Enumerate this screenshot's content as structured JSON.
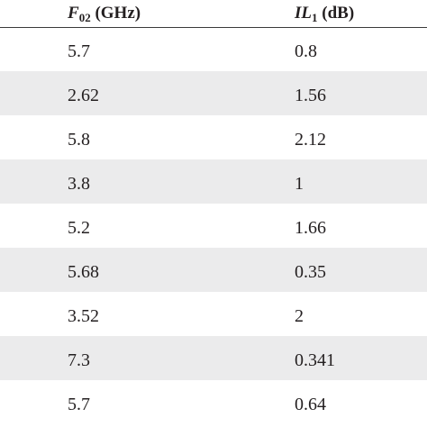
{
  "table": {
    "headers": [
      {
        "symbol": "F",
        "subscript": "02",
        "unit": " (GHz)"
      },
      {
        "symbol": "IL",
        "subscript": "1",
        "unit": " (dB)"
      }
    ],
    "rows": [
      [
        "5.7",
        "0.8"
      ],
      [
        "2.62",
        "1.56"
      ],
      [
        "5.8",
        "2.12"
      ],
      [
        "3.8",
        "1"
      ],
      [
        "5.2",
        "1.66"
      ],
      [
        "5.68",
        "0.35"
      ],
      [
        "3.52",
        "2"
      ],
      [
        "7.3",
        "0.341"
      ],
      [
        "5.7",
        "0.64"
      ]
    ]
  }
}
